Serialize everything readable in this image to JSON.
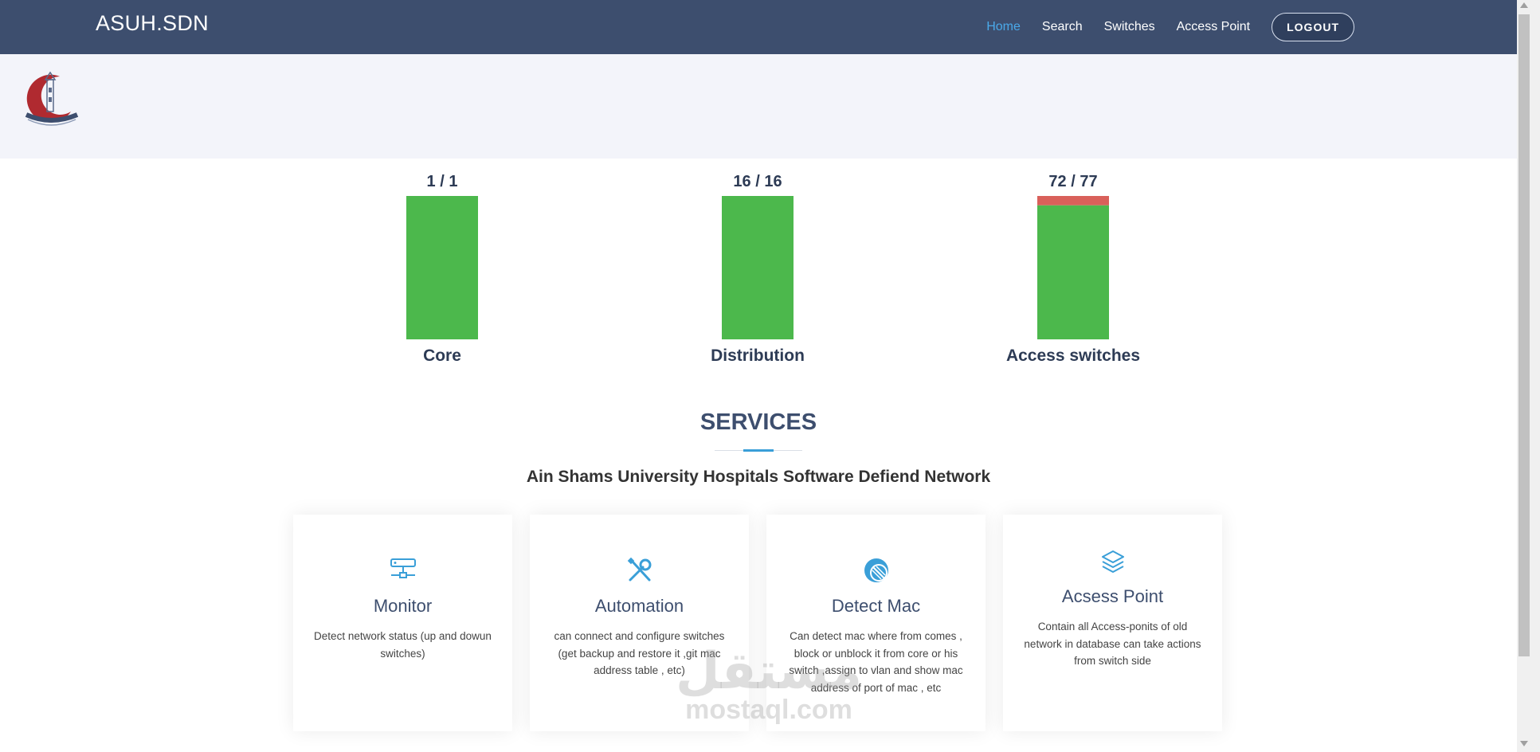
{
  "navbar": {
    "brand": "ASUH.SDN",
    "links": [
      {
        "label": "Home",
        "active": true
      },
      {
        "label": "Search",
        "active": false
      },
      {
        "label": "Switches",
        "active": false
      },
      {
        "label": "Access Point",
        "active": false
      }
    ],
    "logout_label": "LOGOUT",
    "bg_color": "#3d4e6e",
    "active_color": "#4aa9e9"
  },
  "header": {
    "logo_icon": "university-hospital-logo"
  },
  "chart_data": {
    "type": "bar",
    "categories": [
      "Core",
      "Distribution",
      "Access switches"
    ],
    "series": [
      {
        "values": [
          1,
          16,
          72
        ],
        "color": "#4cb84c"
      },
      {
        "values": [
          0,
          0,
          5
        ],
        "color": "#d9605a"
      }
    ],
    "totals": [
      1,
      16,
      77
    ],
    "value_labels": [
      "1 / 1",
      "16 / 16",
      "72 / 77"
    ],
    "stacked": true,
    "normalized": true
  },
  "services": {
    "title": "SERVICES",
    "subtitle": "Ain Shams University Hospitals Software Defiend Network",
    "accent_color": "#3a9fd8",
    "cards": [
      {
        "icon": "network-server-icon",
        "title": "Monitor",
        "description": "Detect network status (up and dowun switches)"
      },
      {
        "icon": "tools-icon",
        "title": "Automation",
        "description": "can connect and configure switches (get backup and restore it ,git mac address table , etc)"
      },
      {
        "icon": "block-icon",
        "title": "Detect Mac",
        "description": "Can detect mac where from comes , block or unblock it from core or his switch ,assign to vlan and show mac address of port of mac , etc"
      },
      {
        "icon": "layers-icon",
        "title": "Acsess Point",
        "description": "Contain all Access-ponits of old network in database can take actions from switch side"
      }
    ]
  },
  "watermark": {
    "arabic": "مستقل",
    "latin": "mostaql.com"
  }
}
